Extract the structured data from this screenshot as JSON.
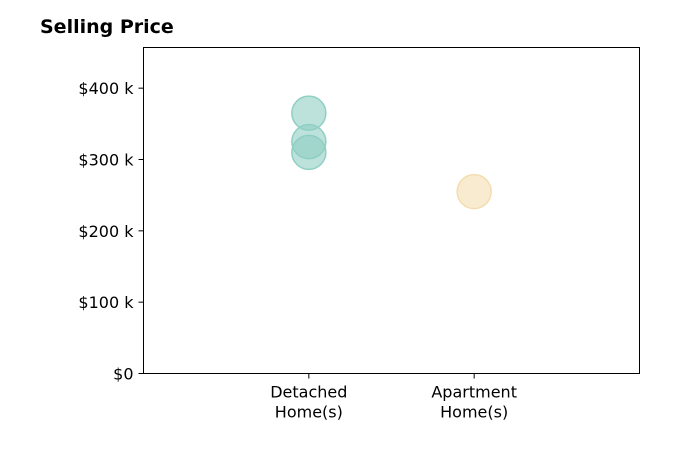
{
  "chart_data": {
    "type": "scatter",
    "title": "Selling Price",
    "categories": [
      "Detached\nHome(s)",
      "Apartment\nHome(s)"
    ],
    "points": [
      {
        "category": 0,
        "value": 365000
      },
      {
        "category": 0,
        "value": 325000
      },
      {
        "category": 0,
        "value": 310000
      },
      {
        "category": 1,
        "value": 255000
      }
    ],
    "point_colors": [
      "#8fcfc3",
      "#f4ddb0"
    ],
    "y_ticks": [
      0,
      100000,
      200000,
      300000,
      400000
    ],
    "y_tick_labels": [
      "$0",
      "$100 k",
      "$200 k",
      "$300 k",
      "$400 k"
    ],
    "ylim": [
      0,
      457000
    ],
    "xlim": [
      -1,
      2
    ],
    "grid": false
  }
}
